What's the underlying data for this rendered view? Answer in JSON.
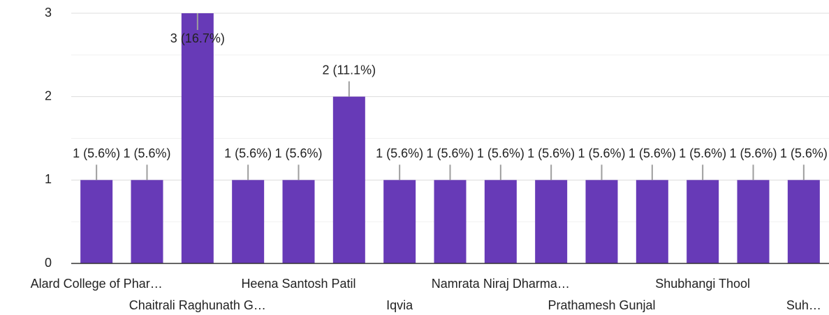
{
  "chart_data": {
    "type": "bar",
    "categories": [
      "Alard College of Phar…",
      null,
      "Chaitrali Raghunath G…",
      null,
      "Heena Santosh Patil",
      null,
      "Iqvia",
      null,
      "Namrata Niraj Dharma…",
      null,
      "Prathamesh Gunjal",
      null,
      "Shubhangi Thool",
      null,
      "Suh…"
    ],
    "values": [
      1,
      1,
      3,
      1,
      1,
      2,
      1,
      1,
      1,
      1,
      1,
      1,
      1,
      1,
      1
    ],
    "value_labels": [
      "1 (5.6%)",
      "1 (5.6%)",
      "3 (16.7%)",
      "1 (5.6%)",
      "1 (5.6%)",
      "2 (11.1%)",
      "1 (5.6%)",
      "1 (5.6%)",
      "1 (5.6%)",
      "1 (5.6%)",
      "1 (5.6%)",
      "1 (5.6%)",
      "1 (5.6%)",
      "1 (5.6%)",
      "1 (5.6%)"
    ],
    "color": "#673ab7",
    "ylim": [
      0,
      3
    ],
    "yticks": [
      0,
      1,
      2,
      3
    ],
    "yminorticks": [
      0.5,
      1.5,
      2.5
    ],
    "grid": true
  }
}
